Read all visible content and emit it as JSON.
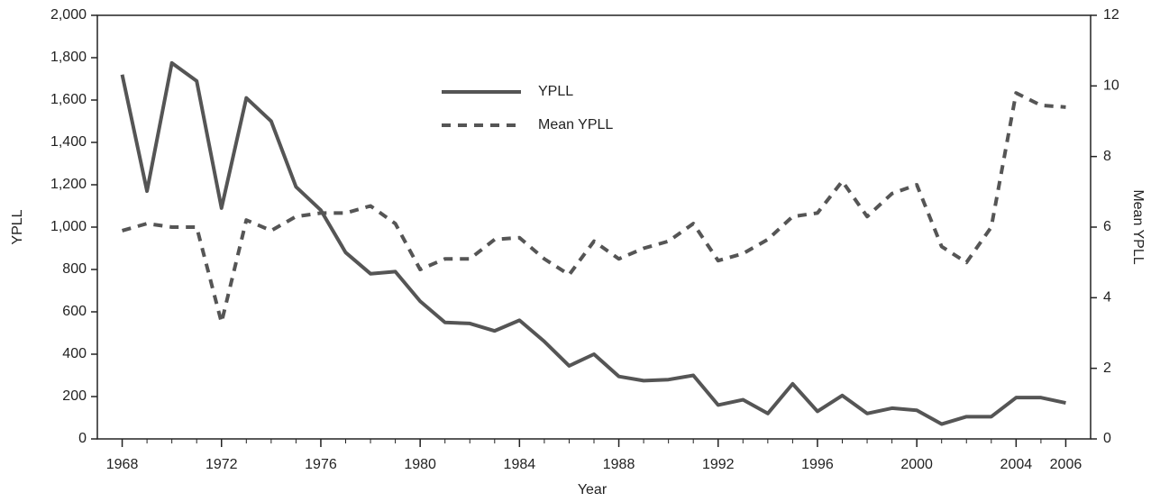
{
  "chart_data": {
    "type": "line",
    "x_label": "Year",
    "y_label": "YPLL",
    "y2_label": "Mean YPLL",
    "x": [
      1968,
      1969,
      1970,
      1971,
      1972,
      1973,
      1974,
      1975,
      1976,
      1977,
      1978,
      1979,
      1980,
      1981,
      1982,
      1983,
      1984,
      1985,
      1986,
      1987,
      1988,
      1989,
      1990,
      1991,
      1992,
      1993,
      1994,
      1995,
      1996,
      1997,
      1998,
      1999,
      2000,
      2001,
      2002,
      2003,
      2004,
      2005,
      2006
    ],
    "series": [
      {
        "name": "YPLL",
        "color": "#555555",
        "dash": "solid",
        "values": [
          1720,
          1170,
          1775,
          1690,
          1090,
          1610,
          1500,
          1190,
          1080,
          880,
          780,
          790,
          650,
          550,
          545,
          510,
          560,
          460,
          345,
          400,
          295,
          275,
          280,
          300,
          160,
          185,
          120,
          260,
          130,
          205,
          120,
          145,
          135,
          70,
          105,
          105,
          195,
          195,
          170
        ]
      },
      {
        "name": "Mean YPLL",
        "color": "#555555",
        "dash": "dashed",
        "axis": "y2",
        "values": [
          5.9,
          6.1,
          6.0,
          6.0,
          3.3,
          6.2,
          5.9,
          6.3,
          6.4,
          6.4,
          6.6,
          6.1,
          4.8,
          5.1,
          5.1,
          5.65,
          5.7,
          5.1,
          4.65,
          5.6,
          5.1,
          5.4,
          5.6,
          6.1,
          5.05,
          5.25,
          5.65,
          6.3,
          6.4,
          7.3,
          6.3,
          6.95,
          7.2,
          5.45,
          5.0,
          6.0,
          9.8,
          9.45,
          9.4
        ]
      }
    ],
    "xlim": [
      1967,
      2007
    ],
    "xticks": [
      1968,
      1972,
      1976,
      1980,
      1984,
      1988,
      1992,
      1996,
      2000,
      2004,
      2006
    ],
    "ylim": [
      0,
      2000
    ],
    "yticks": [
      0,
      200,
      400,
      600,
      800,
      {
        "value": 1000,
        "label": "1,000"
      },
      {
        "value": 1200,
        "label": "1,200"
      },
      {
        "value": 1400,
        "label": "1,400"
      },
      {
        "value": 1600,
        "label": "1,600"
      },
      {
        "value": 1800,
        "label": "1,800"
      },
      {
        "value": 2000,
        "label": "2,000"
      }
    ],
    "y2lim": [
      0,
      12
    ],
    "y2ticks": [
      0,
      2,
      4,
      6,
      8,
      10,
      12
    ],
    "grid": false
  }
}
